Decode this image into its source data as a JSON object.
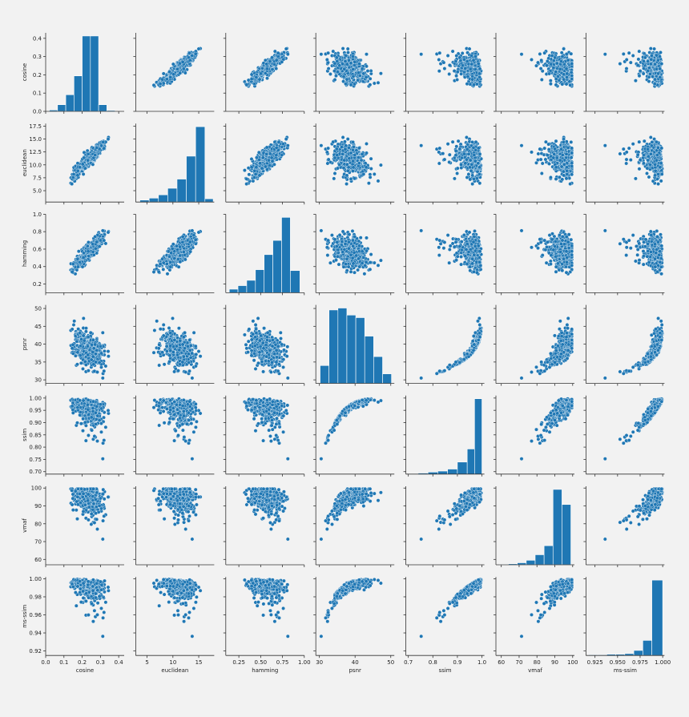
{
  "chart_data": {
    "type": "scatter",
    "subtype": "pairplot",
    "title": "",
    "variables": [
      "cosine",
      "euclidean",
      "hamming",
      "psnr",
      "ssim",
      "vmaf",
      "ms-ssim"
    ],
    "axis_labels": [
      "cosine",
      "euclidean",
      "hamming",
      "psnr",
      "ssim",
      "vmaf",
      "ms-ssim"
    ],
    "color": "#1f77b4",
    "axes": {
      "cosine": {
        "lim": [
          0.0,
          0.43
        ],
        "ticks": [
          0.0,
          0.1,
          0.2,
          0.3,
          0.4
        ],
        "tick_labels": [
          "0.0",
          "0.1",
          "0.2",
          "0.3",
          "0.4"
        ]
      },
      "euclidean": {
        "lim": [
          2.8,
          18.0
        ],
        "ticks": [
          5.0,
          7.5,
          10.0,
          12.5,
          15.0,
          17.5
        ],
        "tick_labels": [
          "5.0",
          "7.5",
          "10.0",
          "12.5",
          "15.0",
          "17.5"
        ],
        "x_ticks": [
          5,
          10,
          15
        ],
        "x_tick_labels": [
          "5",
          "10",
          "15"
        ]
      },
      "hamming": {
        "lim": [
          0.1,
          1.0
        ],
        "ticks": [
          0.2,
          0.4,
          0.6,
          0.8,
          1.0
        ],
        "tick_labels": [
          "0.2",
          "0.4",
          "0.6",
          "0.8",
          "1.0"
        ],
        "x_ticks": [
          0.25,
          0.5,
          0.75,
          1.0
        ],
        "x_tick_labels": [
          "0.25",
          "0.50",
          "0.75",
          "1.00"
        ]
      },
      "psnr": {
        "lim": [
          29.0,
          51.0
        ],
        "ticks": [
          30,
          35,
          40,
          45,
          50
        ],
        "tick_labels": [
          "30",
          "35",
          "40",
          "45",
          "50"
        ],
        "x_ticks": [
          30,
          40,
          50
        ],
        "x_tick_labels": [
          "30",
          "40",
          "50"
        ]
      },
      "ssim": {
        "lim": [
          0.69,
          1.01
        ],
        "ticks": [
          0.7,
          0.75,
          0.8,
          0.85,
          0.9,
          0.95,
          1.0
        ],
        "tick_labels": [
          "0.70",
          "0.75",
          "0.80",
          "0.85",
          "0.90",
          "0.95",
          "1.00"
        ],
        "x_ticks": [
          0.7,
          0.8,
          0.9,
          1.0
        ],
        "x_tick_labels": [
          "0.7",
          "0.8",
          "0.9",
          "1.0"
        ]
      },
      "vmaf": {
        "lim": [
          57.0,
          101.0
        ],
        "ticks": [
          60,
          70,
          80,
          90,
          100
        ],
        "tick_labels": [
          "60",
          "70",
          "80",
          "90",
          "100"
        ]
      },
      "ms-ssim": {
        "lim": [
          0.915,
          1.002
        ],
        "ticks": [
          0.92,
          0.94,
          0.96,
          0.98,
          1.0
        ],
        "tick_labels": [
          "0.92",
          "0.94",
          "0.96",
          "0.98",
          "1.00"
        ],
        "x_ticks": [
          0.925,
          0.95,
          0.975,
          1.0
        ],
        "x_tick_labels": [
          "0.925",
          "0.950",
          "0.975",
          "1.000"
        ]
      }
    },
    "histograms": {
      "cosine": {
        "edges": [
          0.02,
          0.065,
          0.11,
          0.155,
          0.2,
          0.245,
          0.29,
          0.335,
          0.38
        ],
        "counts": [
          6,
          30,
          75,
          160,
          340,
          340,
          30,
          4
        ]
      },
      "euclidean": {
        "edges": [
          3.6,
          5.4,
          7.2,
          9.0,
          10.8,
          12.6,
          14.4,
          16.2,
          17.8
        ],
        "counts": [
          6,
          12,
          22,
          42,
          70,
          140,
          230,
          10
        ]
      },
      "hamming": {
        "edges": [
          0.14,
          0.24,
          0.34,
          0.44,
          0.54,
          0.64,
          0.74,
          0.84,
          0.95
        ],
        "counts": [
          8,
          16,
          28,
          52,
          86,
          118,
          170,
          50
        ]
      },
      "psnr": {
        "edges": [
          30.2,
          32.7,
          35.2,
          37.7,
          40.2,
          42.7,
          45.2,
          47.7,
          50.2
        ],
        "counts": [
          28,
          115,
          118,
          107,
          103,
          74,
          42,
          15
        ]
      },
      "ssim": {
        "edges": [
          0.7,
          0.74,
          0.78,
          0.82,
          0.86,
          0.9,
          0.94,
          0.97,
          1.0
        ],
        "counts": [
          1,
          2,
          4,
          6,
          10,
          24,
          50,
          150
        ]
      },
      "vmaf": {
        "edges": [
          59,
          64,
          69,
          74,
          79,
          84,
          89,
          94,
          99
        ],
        "counts": [
          1,
          2,
          4,
          9,
          20,
          38,
          150,
          120
        ]
      },
      "ms-ssim": {
        "edges": [
          0.918,
          0.928,
          0.938,
          0.948,
          0.958,
          0.968,
          0.978,
          0.988,
          1.0
        ],
        "counts": [
          1,
          1,
          2,
          2,
          3,
          8,
          24,
          120
        ]
      }
    },
    "n_points": 420,
    "grid": false,
    "legend": "none"
  }
}
